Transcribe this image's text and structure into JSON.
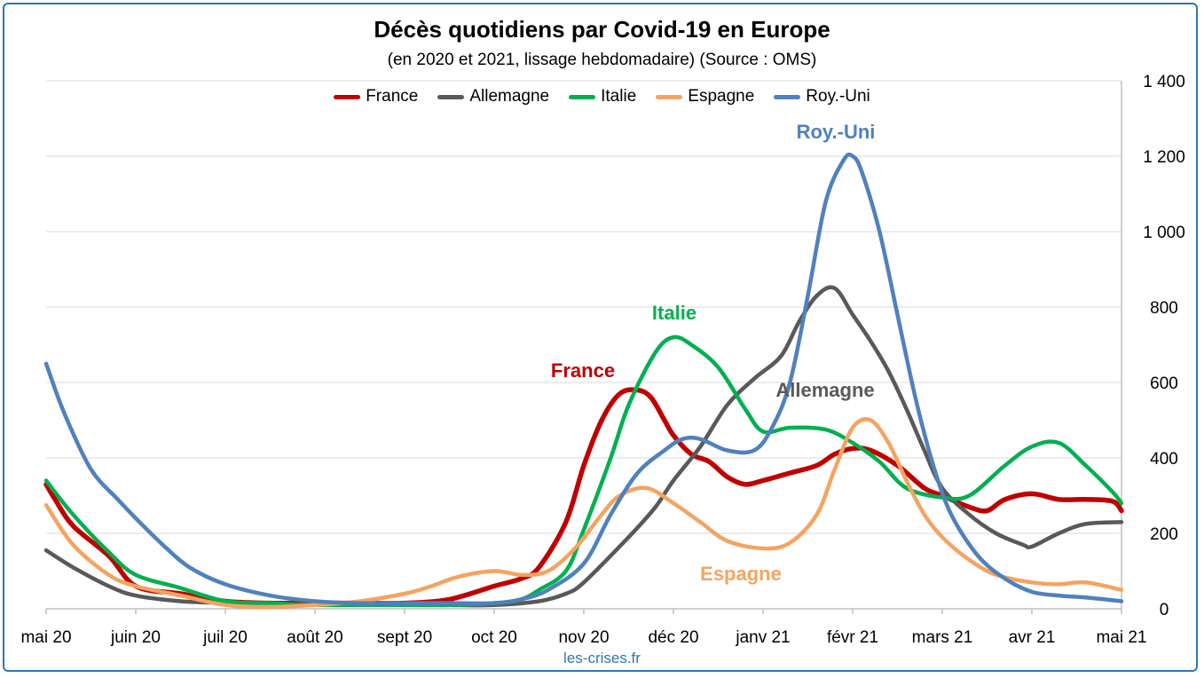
{
  "chart_data": {
    "type": "line",
    "title": "Décès quotidiens par Covid-19 en Europe",
    "subtitle": "(en 2020 et 2021, lissage hebdomadaire) (Source : OMS)",
    "categories": [
      "mai 20",
      "juin 20",
      "juil 20",
      "août 20",
      "sept 20",
      "oct 20",
      "nov 20",
      "déc 20",
      "janv 21",
      "févr 21",
      "mars 21",
      "avr 21",
      "mai 21"
    ],
    "yticks": [
      0,
      200,
      400,
      600,
      800,
      1000,
      1200,
      1400
    ],
    "ytick_labels": [
      "0",
      "200",
      "400",
      "600",
      "800",
      "1 000",
      "1 200",
      "1 400"
    ],
    "ylim": [
      0,
      1400
    ],
    "y_axis_position": "right",
    "grid": true,
    "legend_position": "top",
    "series": [
      {
        "name": "France",
        "color": "#c00000",
        "label": "France",
        "x": [
          0,
          0.1,
          0.3,
          0.7,
          1,
          1.5,
          2,
          2.5,
          3,
          3.5,
          4,
          4.5,
          5,
          5.3,
          5.5,
          5.8,
          6,
          6.2,
          6.4,
          6.6,
          6.75,
          6.9,
          7,
          7.2,
          7.4,
          7.6,
          7.8,
          8,
          8.3,
          8.6,
          8.8,
          9,
          9.2,
          9.5,
          9.8,
          10,
          10.3,
          10.5,
          10.7,
          11,
          11.3,
          11.6,
          11.9,
          12
        ],
        "y": [
          330,
          290,
          220,
          140,
          60,
          40,
          20,
          15,
          15,
          15,
          15,
          25,
          60,
          80,
          110,
          230,
          380,
          500,
          570,
          580,
          560,
          500,
          460,
          410,
          390,
          350,
          330,
          340,
          360,
          380,
          410,
          425,
          420,
          380,
          320,
          300,
          270,
          260,
          290,
          305,
          290,
          290,
          285,
          260
        ]
      },
      {
        "name": "Allemagne",
        "color": "#595959",
        "label": "Allemagne",
        "x": [
          0,
          0.3,
          0.7,
          1,
          1.5,
          2,
          2.5,
          3,
          3.5,
          4,
          4.5,
          5,
          5.5,
          5.8,
          6,
          6.5,
          6.8,
          7,
          7.3,
          7.6,
          7.9,
          8.2,
          8.4,
          8.6,
          8.8,
          9,
          9.2,
          9.4,
          9.6,
          9.8,
          10,
          10.3,
          10.6,
          10.9,
          11,
          11.3,
          11.6,
          12
        ],
        "y": [
          155,
          110,
          60,
          35,
          20,
          15,
          10,
          10,
          10,
          10,
          10,
          10,
          20,
          40,
          70,
          190,
          270,
          340,
          430,
          540,
          610,
          670,
          760,
          830,
          850,
          780,
          710,
          630,
          530,
          420,
          320,
          250,
          200,
          170,
          165,
          200,
          225,
          230
        ]
      },
      {
        "name": "Italie",
        "color": "#00b050",
        "label": "Italie",
        "x": [
          0,
          0.3,
          0.7,
          1,
          1.5,
          2,
          2.5,
          3,
          3.5,
          4,
          4.5,
          5,
          5.3,
          5.5,
          5.8,
          6,
          6.3,
          6.5,
          6.8,
          7,
          7.2,
          7.5,
          7.8,
          8,
          8.3,
          8.7,
          9,
          9.3,
          9.6,
          10,
          10.3,
          10.7,
          11,
          11.3,
          11.6,
          11.9,
          12
        ],
        "y": [
          340,
          250,
          150,
          90,
          55,
          20,
          15,
          10,
          10,
          10,
          10,
          15,
          25,
          50,
          100,
          210,
          400,
          540,
          680,
          720,
          700,
          640,
          530,
          470,
          480,
          475,
          440,
          390,
          320,
          295,
          300,
          380,
          430,
          440,
          380,
          310,
          280
        ]
      },
      {
        "name": "Espagne",
        "color": "#f4a460",
        "label": "Espagne",
        "x": [
          0,
          0.3,
          0.7,
          1,
          1.5,
          2,
          2.5,
          3,
          3.5,
          4,
          4.3,
          4.6,
          5,
          5.3,
          5.6,
          5.9,
          6.2,
          6.4,
          6.7,
          7,
          7.3,
          7.6,
          8,
          8.3,
          8.6,
          8.8,
          9,
          9.2,
          9.4,
          9.6,
          9.8,
          10,
          10.3,
          10.6,
          11,
          11.3,
          11.6,
          12
        ],
        "y": [
          275,
          170,
          90,
          60,
          35,
          10,
          5,
          10,
          20,
          40,
          60,
          85,
          100,
          90,
          100,
          160,
          250,
          300,
          320,
          280,
          230,
          180,
          160,
          175,
          250,
          370,
          480,
          500,
          440,
          340,
          250,
          190,
          130,
          90,
          70,
          65,
          70,
          50
        ]
      },
      {
        "name": "Roy.-Uni",
        "color": "#4f81bd",
        "label": "Roy.-Uni",
        "x": [
          0,
          0.2,
          0.5,
          0.8,
          1,
          1.3,
          1.6,
          2,
          2.5,
          3,
          3.5,
          4,
          4.5,
          5,
          5.3,
          5.6,
          6,
          6.3,
          6.6,
          6.9,
          7.1,
          7.3,
          7.6,
          7.9,
          8.1,
          8.3,
          8.5,
          8.7,
          8.9,
          9,
          9.1,
          9.3,
          9.5,
          9.7,
          9.9,
          10.1,
          10.4,
          10.7,
          11,
          11.3,
          11.6,
          12
        ],
        "y": [
          650,
          520,
          370,
          290,
          240,
          170,
          110,
          65,
          35,
          20,
          15,
          15,
          15,
          15,
          25,
          50,
          120,
          250,
          360,
          420,
          450,
          450,
          420,
          420,
          480,
          600,
          830,
          1080,
          1190,
          1200,
          1160,
          1000,
          780,
          560,
          380,
          250,
          140,
          80,
          45,
          35,
          30,
          20
        ]
      }
    ]
  },
  "footer": {
    "source": "les-crises.fr"
  }
}
